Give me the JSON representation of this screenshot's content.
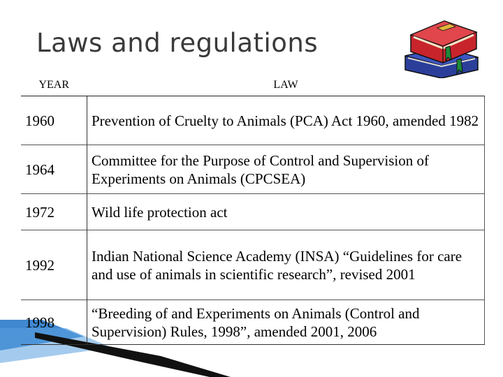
{
  "title": "Laws and regulations",
  "table": {
    "headers": [
      "YEAR",
      "LAW"
    ],
    "rows": [
      {
        "year": "1960",
        "law": "Prevention of Cruelty to Animals (PCA) Act 1960, amended 1982"
      },
      {
        "year": "1964",
        "law": "Committee for the Purpose of Control and Supervision of Experiments on Animals (CPCSEA)"
      },
      {
        "year": "1972",
        "law": "Wild life protection act"
      },
      {
        "year": "1992",
        "law": "Indian National Science Academy (INSA) “Guidelines for care and use of animals in scientific research”, revised 2001"
      },
      {
        "year": "1998",
        "law": "“Breeding of and Experiments on Animals (Control and Supervision) Rules, 1998”, amended 2001, 2006"
      }
    ]
  },
  "images": {
    "books_icon": "stack-of-books-icon"
  },
  "colors": {
    "title": "#3a3a3a",
    "book_red": "#c8242c",
    "book_blue": "#2b3f9a",
    "accent_blue": "#1e73c8"
  }
}
